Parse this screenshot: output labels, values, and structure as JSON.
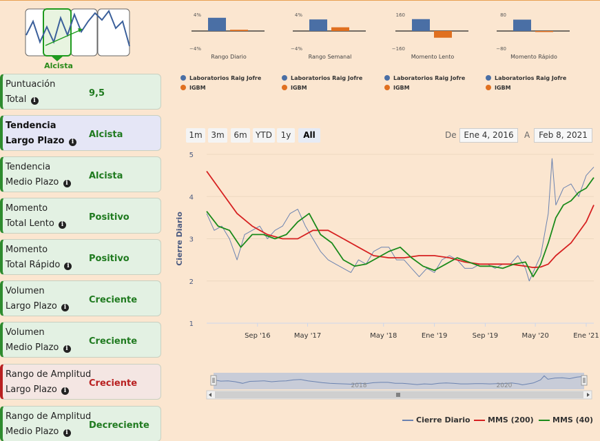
{
  "trend_logo": {
    "label": "Alcista"
  },
  "sidebar": [
    {
      "line1": "Puntuación",
      "line2": "Total",
      "value": "9,5",
      "style": "green"
    },
    {
      "line1": "Tendencia",
      "line2": "Largo Plazo",
      "value": "Alcista",
      "style": "blue"
    },
    {
      "line1": "Tendencia",
      "line2": "Medio Plazo",
      "value": "Alcista",
      "style": "green"
    },
    {
      "line1": "Momento",
      "line2": "Total Lento",
      "value": "Positivo",
      "style": "green"
    },
    {
      "line1": "Momento",
      "line2": "Total Rápido",
      "value": "Positivo",
      "style": "green"
    },
    {
      "line1": "Volumen",
      "line2": "Largo Plazo",
      "value": "Creciente",
      "style": "green"
    },
    {
      "line1": "Volumen",
      "line2": "Medio Plazo",
      "value": "Creciente",
      "style": "green"
    },
    {
      "line1": "Rango de Amplitud",
      "line2": "Largo Plazo",
      "value": "Creciente",
      "style": "red"
    },
    {
      "line1": "Rango de Amplitud",
      "line2": "Medio Plazo",
      "value": "Decreciente",
      "style": "green"
    }
  ],
  "mini_charts": [
    {
      "title": "Rango Diario",
      "ymax": "4%",
      "ymin": "−4%",
      "stock": 3.2,
      "index": 0.3,
      "scale": 4
    },
    {
      "title": "Rango Semanal",
      "ymax": "4%",
      "ymin": "−4%",
      "stock": 2.8,
      "index": 0.9,
      "scale": 4
    },
    {
      "title": "Momento Lento",
      "ymax": "160",
      "ymin": "−160",
      "stock": 115,
      "index": -65,
      "scale": 160
    },
    {
      "title": "Momento Rápido",
      "ymax": "80",
      "ymin": "−80",
      "stock": 55,
      "index": -1,
      "scale": 80
    }
  ],
  "mini_legend": {
    "stock": "Laboratorios Raig Jofre",
    "index": "IGBM"
  },
  "colors": {
    "stock": "#4a6fa5",
    "index": "#e07020",
    "mms200": "#d62020",
    "mms40": "#1a8a1a",
    "close": "#6a82b0"
  },
  "range_selector": {
    "buttons": [
      "1m",
      "3m",
      "6m",
      "YTD",
      "1y",
      "All"
    ],
    "selected": "All",
    "from_label": "De",
    "from_value": "Ene 4, 2016",
    "to_label": "A",
    "to_value": "Feb 8, 2021"
  },
  "chart_data": {
    "type": "line",
    "ylabel": "Cierre Diario",
    "ylim": [
      1,
      5
    ],
    "yticks": [
      "1",
      "2",
      "3",
      "4",
      "5"
    ],
    "xlim": [
      2016.0,
      2021.1
    ],
    "xticks": [
      {
        "label": "Sep '16",
        "x": 2016.67
      },
      {
        "label": "May '17",
        "x": 2017.33
      },
      {
        "label": "May '18",
        "x": 2018.33
      },
      {
        "label": "Ene '19",
        "x": 2019.0
      },
      {
        "label": "Sep '19",
        "x": 2019.67
      },
      {
        "label": "May '20",
        "x": 2020.33
      },
      {
        "label": "Ene '21",
        "x": 2021.0
      }
    ],
    "series": [
      {
        "name": "Cierre Diario",
        "x": [
          2016.0,
          2016.1,
          2016.2,
          2016.3,
          2016.4,
          2016.5,
          2016.6,
          2016.7,
          2016.8,
          2016.9,
          2017.0,
          2017.1,
          2017.2,
          2017.3,
          2017.4,
          2017.5,
          2017.6,
          2017.7,
          2017.8,
          2017.9,
          2018.0,
          2018.1,
          2018.2,
          2018.3,
          2018.4,
          2018.5,
          2018.6,
          2018.7,
          2018.8,
          2018.9,
          2019.0,
          2019.1,
          2019.2,
          2019.3,
          2019.4,
          2019.5,
          2019.6,
          2019.7,
          2019.8,
          2019.9,
          2020.0,
          2020.1,
          2020.2,
          2020.25,
          2020.3,
          2020.4,
          2020.5,
          2020.55,
          2020.6,
          2020.7,
          2020.8,
          2020.9,
          2021.0,
          2021.1
        ],
        "values": [
          3.6,
          3.2,
          3.3,
          3.0,
          2.5,
          3.1,
          3.2,
          3.3,
          3.0,
          3.2,
          3.3,
          3.6,
          3.7,
          3.3,
          3.0,
          2.7,
          2.5,
          2.4,
          2.3,
          2.2,
          2.5,
          2.4,
          2.7,
          2.8,
          2.8,
          2.5,
          2.5,
          2.3,
          2.1,
          2.3,
          2.2,
          2.5,
          2.6,
          2.5,
          2.3,
          2.3,
          2.4,
          2.4,
          2.3,
          2.4,
          2.4,
          2.6,
          2.3,
          2.0,
          2.2,
          2.6,
          3.6,
          4.9,
          3.8,
          4.2,
          4.3,
          4.0,
          4.5,
          4.7
        ]
      },
      {
        "name": "MMS (200)",
        "x": [
          2016.0,
          2016.2,
          2016.4,
          2016.6,
          2016.8,
          2017.0,
          2017.2,
          2017.4,
          2017.6,
          2017.8,
          2018.0,
          2018.2,
          2018.4,
          2018.6,
          2018.8,
          2019.0,
          2019.2,
          2019.4,
          2019.6,
          2019.8,
          2020.0,
          2020.2,
          2020.3,
          2020.4,
          2020.5,
          2020.6,
          2020.8,
          2021.0,
          2021.1
        ],
        "values": [
          4.6,
          4.1,
          3.6,
          3.3,
          3.1,
          3.0,
          3.0,
          3.2,
          3.2,
          3.0,
          2.8,
          2.6,
          2.55,
          2.55,
          2.6,
          2.6,
          2.55,
          2.45,
          2.4,
          2.4,
          2.4,
          2.35,
          2.32,
          2.33,
          2.4,
          2.6,
          2.9,
          3.4,
          3.8
        ]
      },
      {
        "name": "MMS (40)",
        "x": [
          2016.0,
          2016.15,
          2016.3,
          2016.45,
          2016.6,
          2016.75,
          2016.9,
          2017.05,
          2017.2,
          2017.35,
          2017.5,
          2017.65,
          2017.8,
          2017.95,
          2018.1,
          2018.25,
          2018.4,
          2018.55,
          2018.7,
          2018.85,
          2019.0,
          2019.15,
          2019.3,
          2019.45,
          2019.6,
          2019.75,
          2019.9,
          2020.05,
          2020.2,
          2020.3,
          2020.4,
          2020.5,
          2020.6,
          2020.7,
          2020.8,
          2020.9,
          2021.0,
          2021.1
        ],
        "values": [
          3.65,
          3.3,
          3.2,
          2.8,
          3.1,
          3.1,
          3.0,
          3.1,
          3.4,
          3.6,
          3.1,
          2.9,
          2.5,
          2.35,
          2.4,
          2.55,
          2.7,
          2.8,
          2.55,
          2.35,
          2.25,
          2.4,
          2.55,
          2.45,
          2.35,
          2.35,
          2.3,
          2.4,
          2.45,
          2.1,
          2.4,
          2.9,
          3.5,
          3.8,
          3.9,
          4.1,
          4.2,
          4.45
        ]
      }
    ],
    "navigator_labels": [
      "2018",
      "2020"
    ]
  },
  "bottom_legend": [
    "Cierre Diario",
    "MMS (200)",
    "MMS (40)"
  ]
}
